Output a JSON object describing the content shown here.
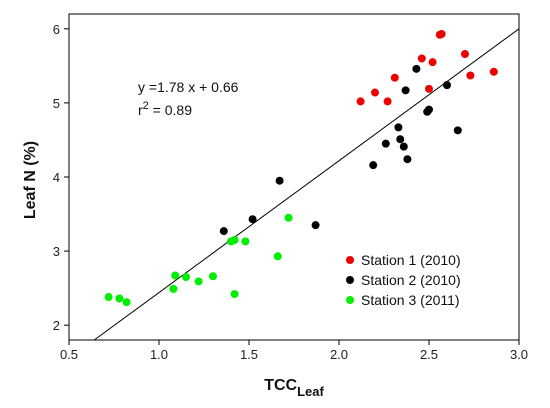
{
  "chart_data": {
    "type": "scatter",
    "title": "",
    "xlabel_main": "TCC",
    "xlabel_sub": "Leaf",
    "ylabel": "Leaf N (%)",
    "xlim": [
      0.5,
      3.0
    ],
    "ylim": [
      1.8,
      6.2
    ],
    "xticks": [
      "0.5",
      "1.0",
      "1.5",
      "2.0",
      "2.5",
      "3.0"
    ],
    "yticks": [
      "2",
      "3",
      "4",
      "5",
      "6"
    ],
    "grid": false,
    "legend_position": "bottom-right",
    "annotation": {
      "equation": "y =1.78 x + 0.66",
      "r2_base": "r",
      "r2_exp": "2",
      "r2_rest": " = 0.89"
    },
    "regression": {
      "slope": 1.78,
      "intercept": 0.66
    },
    "series": [
      {
        "name": "Station 1 (2010)",
        "color": "#ee0000",
        "points": [
          [
            2.12,
            5.02
          ],
          [
            2.2,
            5.14
          ],
          [
            2.27,
            5.02
          ],
          [
            2.31,
            5.34
          ],
          [
            2.46,
            5.6
          ],
          [
            2.5,
            5.19
          ],
          [
            2.52,
            5.55
          ],
          [
            2.56,
            5.92
          ],
          [
            2.57,
            5.93
          ],
          [
            2.7,
            5.66
          ],
          [
            2.73,
            5.37
          ],
          [
            2.86,
            5.42
          ]
        ]
      },
      {
        "name": "Station 2 (2010)",
        "color": "#000000",
        "points": [
          [
            1.36,
            3.27
          ],
          [
            1.52,
            3.43
          ],
          [
            1.67,
            3.95
          ],
          [
            1.87,
            3.35
          ],
          [
            2.19,
            4.16
          ],
          [
            2.26,
            4.45
          ],
          [
            2.33,
            4.67
          ],
          [
            2.34,
            4.51
          ],
          [
            2.36,
            4.41
          ],
          [
            2.37,
            5.17
          ],
          [
            2.38,
            4.24
          ],
          [
            2.43,
            5.46
          ],
          [
            2.49,
            4.88
          ],
          [
            2.5,
            4.91
          ],
          [
            2.6,
            5.24
          ],
          [
            2.66,
            4.63
          ]
        ]
      },
      {
        "name": "Station 3 (2011)",
        "color": "#00ee00",
        "points": [
          [
            0.72,
            2.38
          ],
          [
            0.78,
            2.36
          ],
          [
            0.82,
            2.31
          ],
          [
            1.08,
            2.49
          ],
          [
            1.09,
            2.67
          ],
          [
            1.15,
            2.65
          ],
          [
            1.22,
            2.59
          ],
          [
            1.3,
            2.66
          ],
          [
            1.4,
            3.13
          ],
          [
            1.42,
            3.15
          ],
          [
            1.42,
            2.42
          ],
          [
            1.48,
            3.13
          ],
          [
            1.66,
            2.93
          ],
          [
            1.72,
            3.45
          ]
        ]
      }
    ]
  }
}
